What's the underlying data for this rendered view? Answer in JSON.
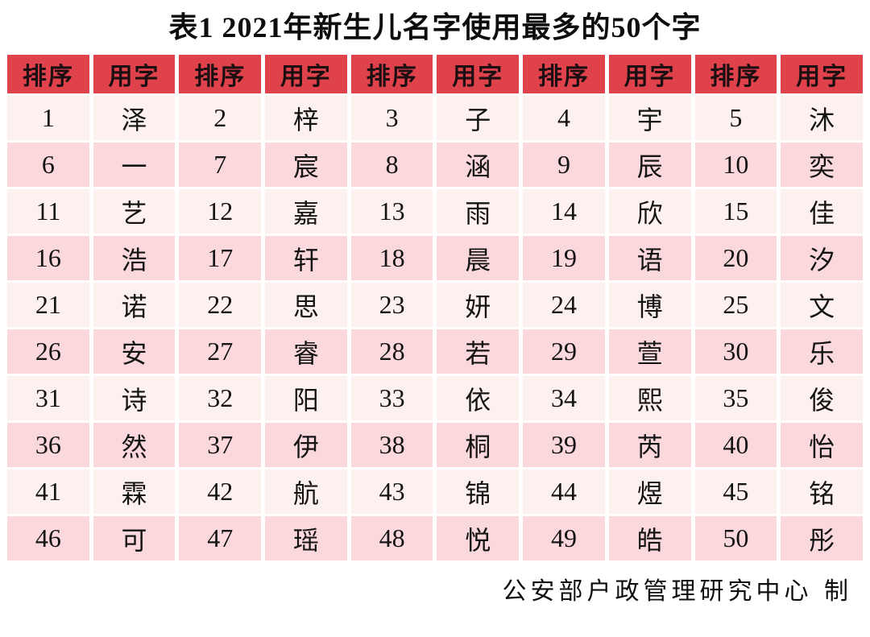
{
  "title": "表1 2021年新生儿名字使用最多的50个字",
  "table": {
    "header_labels": [
      "排序",
      "用字",
      "排序",
      "用字",
      "排序",
      "用字",
      "排序",
      "用字",
      "排序",
      "用字"
    ],
    "columns_per_row": 5,
    "entries": [
      {
        "rank": "1",
        "char": "泽"
      },
      {
        "rank": "2",
        "char": "梓"
      },
      {
        "rank": "3",
        "char": "子"
      },
      {
        "rank": "4",
        "char": "宇"
      },
      {
        "rank": "5",
        "char": "沐"
      },
      {
        "rank": "6",
        "char": "一"
      },
      {
        "rank": "7",
        "char": "宸"
      },
      {
        "rank": "8",
        "char": "涵"
      },
      {
        "rank": "9",
        "char": "辰"
      },
      {
        "rank": "10",
        "char": "奕"
      },
      {
        "rank": "11",
        "char": "艺"
      },
      {
        "rank": "12",
        "char": "嘉"
      },
      {
        "rank": "13",
        "char": "雨"
      },
      {
        "rank": "14",
        "char": "欣"
      },
      {
        "rank": "15",
        "char": "佳"
      },
      {
        "rank": "16",
        "char": "浩"
      },
      {
        "rank": "17",
        "char": "轩"
      },
      {
        "rank": "18",
        "char": "晨"
      },
      {
        "rank": "19",
        "char": "语"
      },
      {
        "rank": "20",
        "char": "汐"
      },
      {
        "rank": "21",
        "char": "诺"
      },
      {
        "rank": "22",
        "char": "思"
      },
      {
        "rank": "23",
        "char": "妍"
      },
      {
        "rank": "24",
        "char": "博"
      },
      {
        "rank": "25",
        "char": "文"
      },
      {
        "rank": "26",
        "char": "安"
      },
      {
        "rank": "27",
        "char": "睿"
      },
      {
        "rank": "28",
        "char": "若"
      },
      {
        "rank": "29",
        "char": "萱"
      },
      {
        "rank": "30",
        "char": "乐"
      },
      {
        "rank": "31",
        "char": "诗"
      },
      {
        "rank": "32",
        "char": "阳"
      },
      {
        "rank": "33",
        "char": "依"
      },
      {
        "rank": "34",
        "char": "熙"
      },
      {
        "rank": "35",
        "char": "俊"
      },
      {
        "rank": "36",
        "char": "然"
      },
      {
        "rank": "37",
        "char": "伊"
      },
      {
        "rank": "38",
        "char": "桐"
      },
      {
        "rank": "39",
        "char": "芮"
      },
      {
        "rank": "40",
        "char": "怡"
      },
      {
        "rank": "41",
        "char": "霖"
      },
      {
        "rank": "42",
        "char": "航"
      },
      {
        "rank": "43",
        "char": "锦"
      },
      {
        "rank": "44",
        "char": "煜"
      },
      {
        "rank": "45",
        "char": "铭"
      },
      {
        "rank": "46",
        "char": "可"
      },
      {
        "rank": "47",
        "char": "瑶"
      },
      {
        "rank": "48",
        "char": "悦"
      },
      {
        "rank": "49",
        "char": "皓"
      },
      {
        "rank": "50",
        "char": "彤"
      }
    ]
  },
  "footer": {
    "credit": "公安部户政管理研究中心 制"
  },
  "colors": {
    "header_bg": "#e0424b",
    "header_text": "#1c0f12",
    "row_light": "#fdf1f0",
    "row_pink": "#fbd8db",
    "cell_text": "#141414"
  }
}
